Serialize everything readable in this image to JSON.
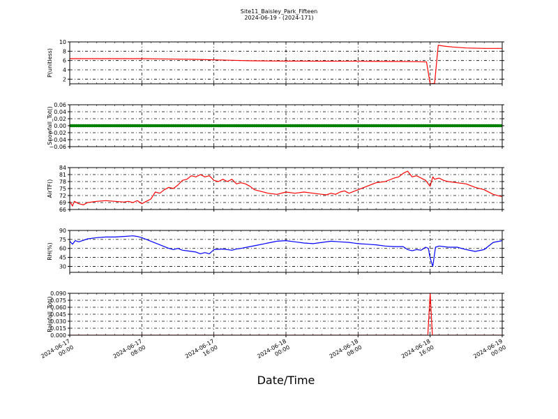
{
  "title_line1": "Site11_Baisley_Park_Fifteen",
  "title_line2": "2024-06-19 - (2024-171)",
  "xlabel": "Date/Time",
  "x_ticks": [
    {
      "line1": "2024-06-17",
      "line2": "00:00"
    },
    {
      "line1": "2024-06-17",
      "line2": "08:00"
    },
    {
      "line1": "2024-06-17",
      "line2": "16:00"
    },
    {
      "line1": "2024-06-18",
      "line2": "00:00"
    },
    {
      "line1": "2024-06-18",
      "line2": "08:00"
    },
    {
      "line1": "2024-06-18",
      "line2": "16:00"
    },
    {
      "line1": "2024-06-19",
      "line2": "00:00"
    }
  ],
  "chart_data": [
    {
      "type": "line",
      "ylabel": "P(unitless)",
      "ylim": [
        1,
        10
      ],
      "yticks": [
        "2",
        "4",
        "6",
        "8",
        "10"
      ],
      "yticks_values": [
        2,
        4,
        6,
        8,
        10
      ],
      "grid": true,
      "color": "#ff0000",
      "x_hours": [
        0,
        2,
        4,
        6,
        8,
        10,
        12,
        14,
        16,
        18,
        20,
        22,
        24,
        26,
        28,
        30,
        32,
        34,
        36,
        38,
        39.6,
        40,
        40.5,
        40.9,
        41.5,
        42.5,
        44,
        46,
        48
      ],
      "values": [
        6.4,
        6.4,
        6.4,
        6.4,
        6.4,
        6.35,
        6.3,
        6.25,
        6.15,
        6.05,
        5.95,
        5.9,
        5.88,
        5.87,
        5.86,
        5.85,
        5.84,
        5.82,
        5.8,
        5.77,
        5.7,
        1.0,
        1.1,
        9.3,
        9.1,
        8.9,
        8.7,
        8.6,
        8.6
      ]
    },
    {
      "type": "line",
      "ylabel": "Snowfall_Tot()",
      "ylim": [
        -0.06,
        0.06
      ],
      "yticks": [
        "−0.06",
        "−0.04",
        "−0.02",
        "0.00",
        "0.02",
        "0.04",
        "0.06"
      ],
      "yticks_values": [
        -0.06,
        -0.04,
        -0.02,
        0.0,
        0.02,
        0.04,
        0.06
      ],
      "grid": true,
      "color": "#008000",
      "markers": true,
      "x_hours": [
        0,
        48
      ],
      "values": [
        0,
        0
      ]
    },
    {
      "type": "line",
      "ylabel": "AirTF()",
      "ylim": [
        66,
        84
      ],
      "yticks": [
        "66",
        "69",
        "72",
        "75",
        "78",
        "81",
        "84"
      ],
      "yticks_values": [
        66,
        69,
        72,
        75,
        78,
        81,
        84
      ],
      "grid": true,
      "color": "#ff0000",
      "x_hours": [
        0,
        0.3,
        0.5,
        1,
        1.5,
        2,
        3,
        4,
        5,
        6,
        6.5,
        7,
        7.5,
        8,
        8.5,
        9,
        9.5,
        10,
        10.5,
        11,
        11.5,
        12,
        12.5,
        13,
        13.5,
        14,
        14.5,
        15,
        15.5,
        16,
        16.5,
        17,
        17.5,
        18,
        18.5,
        19,
        19.5,
        20,
        20.5,
        21,
        22,
        23,
        24,
        25,
        26,
        27,
        28,
        28.5,
        29,
        29.5,
        30,
        30.5,
        31,
        32,
        33,
        34,
        35,
        36,
        36.5,
        37,
        37.5,
        38,
        38.5,
        39,
        39.5,
        40,
        40.3,
        40.5,
        41,
        41.5,
        42,
        43,
        44,
        45,
        46,
        47,
        48
      ],
      "values": [
        69.5,
        67.5,
        69.5,
        68.5,
        68.0,
        69.0,
        69.5,
        69.8,
        69.5,
        69.2,
        69.5,
        69.0,
        69.8,
        68.5,
        69.5,
        70.5,
        73.5,
        73.0,
        74.5,
        75.5,
        75.0,
        76.5,
        78.5,
        79.0,
        80.5,
        80.0,
        81.0,
        80.0,
        80.5,
        78.5,
        78.0,
        79.0,
        78.0,
        79.0,
        77.0,
        77.5,
        77.0,
        76.0,
        74.5,
        74.0,
        73.0,
        72.5,
        73.5,
        73.0,
        73.5,
        73.0,
        72.5,
        72.3,
        73.0,
        72.5,
        73.5,
        74.0,
        73.0,
        74.5,
        76.0,
        77.5,
        78.0,
        79.5,
        80.0,
        81.5,
        82.5,
        80.0,
        80.5,
        79.5,
        78.5,
        76.0,
        80.0,
        79.0,
        79.5,
        78.5,
        78.0,
        77.5,
        77.0,
        75.5,
        74.5,
        72.5,
        71.5
      ]
    },
    {
      "type": "line",
      "ylabel": "RH(%)",
      "ylim": [
        20,
        90
      ],
      "yticks": [
        "30",
        "45",
        "60",
        "75",
        "90"
      ],
      "yticks_values": [
        30,
        45,
        60,
        75,
        90
      ],
      "grid": true,
      "color": "#0000ff",
      "x_hours": [
        0,
        0.3,
        0.6,
        1,
        2,
        3,
        4,
        5,
        6,
        7,
        7.5,
        8,
        9,
        10,
        11,
        11.5,
        12,
        12.5,
        13,
        13.5,
        14,
        14.5,
        15,
        15.5,
        16,
        17,
        18,
        18.5,
        19,
        20,
        21,
        22,
        23,
        24,
        25,
        26,
        27,
        28,
        29,
        30,
        31,
        32,
        33,
        34,
        35,
        36,
        37,
        37.5,
        38,
        38.5,
        39,
        39.5,
        39.8,
        40,
        40.3,
        40.6,
        41,
        42,
        43,
        44,
        45,
        46,
        47,
        48
      ],
      "values": [
        72,
        67,
        73,
        71,
        76,
        78,
        79,
        79,
        80,
        81,
        80,
        78,
        72,
        66,
        60,
        58,
        60,
        57,
        56,
        55,
        54,
        51,
        53,
        51,
        58,
        59,
        57,
        59,
        60,
        63,
        66,
        69,
        72,
        73,
        71,
        69,
        68,
        70,
        72,
        71,
        70,
        68,
        67,
        66,
        64,
        63,
        63,
        58,
        56,
        58,
        57,
        62,
        60,
        44,
        30,
        62,
        64,
        62,
        62,
        58,
        55,
        58,
        70,
        73
      ]
    },
    {
      "type": "line",
      "ylabel": "Rainfall_Tot()",
      "ylim": [
        0,
        0.09
      ],
      "yticks": [
        "0.000",
        "0.015",
        "0.030",
        "0.045",
        "0.060",
        "0.075",
        "0.090"
      ],
      "yticks_values": [
        0,
        0.015,
        0.03,
        0.045,
        0.06,
        0.075,
        0.09
      ],
      "grid": true,
      "color": "#ff0000",
      "x_hours": [
        0,
        39.5,
        39.75,
        40.0,
        40.25,
        40.5,
        48
      ],
      "values": [
        0,
        0,
        0.0,
        0.09,
        0.0,
        0,
        0
      ]
    }
  ]
}
